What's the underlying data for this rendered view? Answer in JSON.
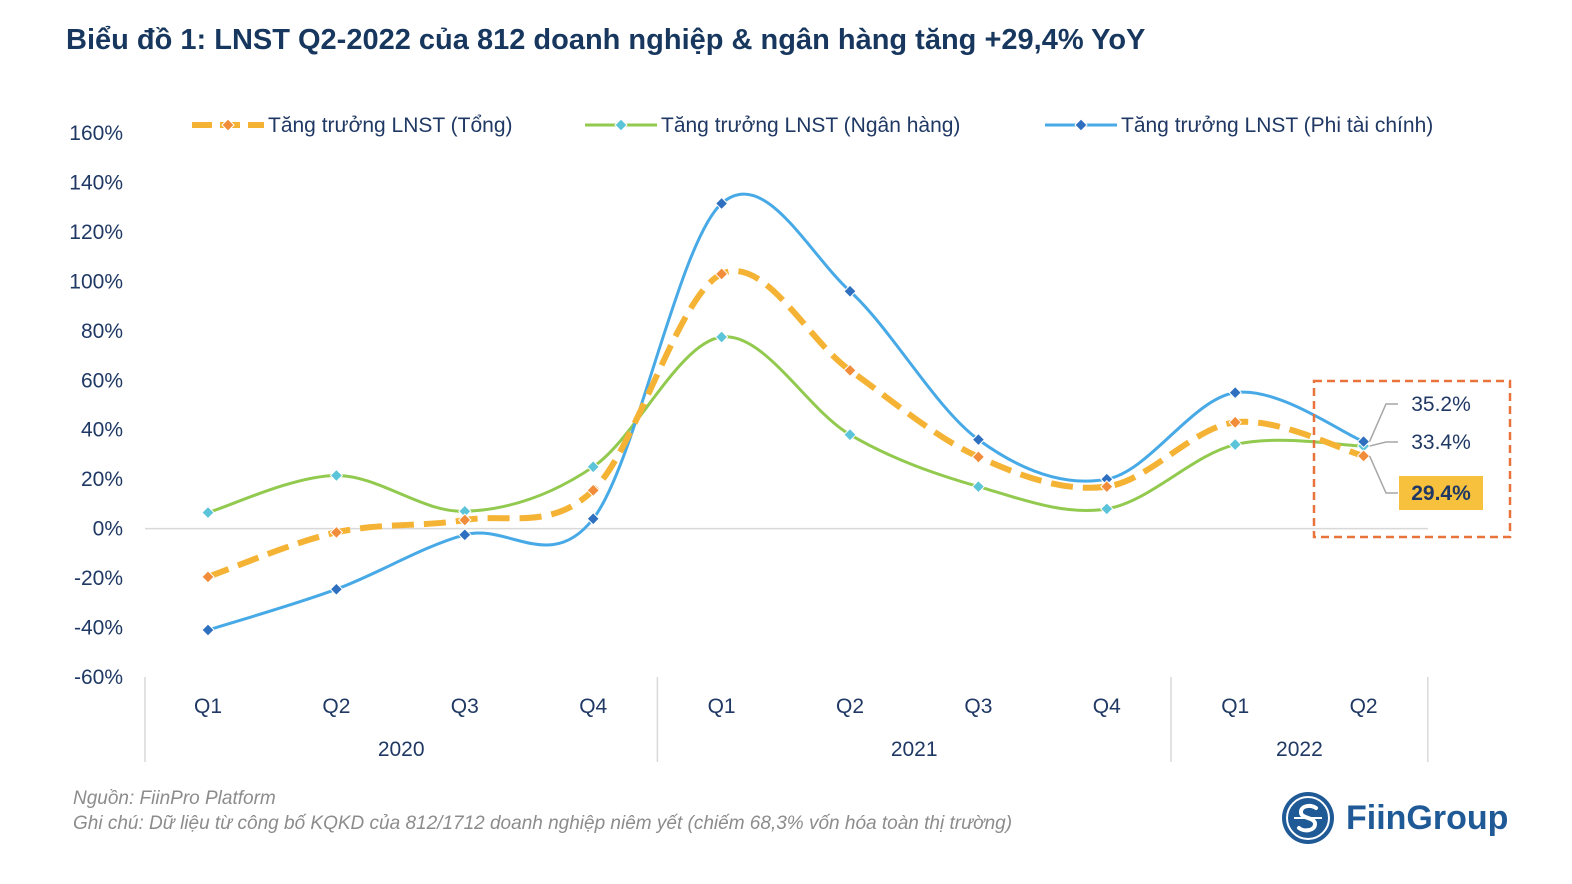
{
  "header": {
    "title": "Biểu đồ 1: LNST Q2-2022 của 812 doanh nghiệp & ngân hàng tăng +29,4% YoY"
  },
  "chart_data": {
    "type": "line",
    "categories": [
      "Q1",
      "Q2",
      "Q3",
      "Q4",
      "Q1",
      "Q2",
      "Q3",
      "Q4",
      "Q1",
      "Q2"
    ],
    "groups": [
      {
        "label": "2020",
        "count": 4
      },
      {
        "label": "2021",
        "count": 4
      },
      {
        "label": "2022",
        "count": 2
      }
    ],
    "ylim": [
      -60,
      160
    ],
    "yticks": [
      -60,
      -40,
      -20,
      0,
      20,
      40,
      60,
      80,
      100,
      120,
      140,
      160
    ],
    "ytick_labels": [
      "-60%",
      "-40%",
      "-20%",
      "0%",
      "20%",
      "40%",
      "60%",
      "80%",
      "100%",
      "120%",
      "140%",
      "160%"
    ],
    "grid": false,
    "legend_position": "top",
    "series": [
      {
        "name": "Tăng trưởng LNST (Tổng)",
        "color": "#f5b335",
        "marker_color": "#f08c3a",
        "dashed": true,
        "values": [
          -19.5,
          -1.5,
          3.5,
          15.5,
          103.0,
          64.0,
          29.0,
          17.0,
          43.0,
          29.4
        ]
      },
      {
        "name": "Tăng trưởng LNST (Ngân hàng)",
        "color": "#92c94f",
        "marker_color": "#5cc4d8",
        "dashed": false,
        "values": [
          6.5,
          21.5,
          7.0,
          25.0,
          77.5,
          38.0,
          17.0,
          8.0,
          34.0,
          33.4
        ]
      },
      {
        "name": "Tăng trưởng LNST (Phi tài chính)",
        "color": "#47a9e6",
        "marker_color": "#2e6fbf",
        "dashed": false,
        "values": [
          -41.0,
          -24.5,
          -2.5,
          4.0,
          131.5,
          96.0,
          36.0,
          20.0,
          55.0,
          35.2
        ]
      }
    ],
    "annotations": [
      {
        "text": "35.2%",
        "highlight": false
      },
      {
        "text": "33.4%",
        "highlight": false
      },
      {
        "text": "29.4%",
        "highlight": true,
        "highlight_color": "#f7c13d"
      }
    ],
    "annotation_box_color": "#e8743b"
  },
  "footer": {
    "source": "Nguồn: FiinPro Platform",
    "note": "Ghi chú: Dữ liệu từ công bố KQKD của 812/1712 doanh nghiệp niêm yết (chiếm 68,3% vốn hóa toàn thị trường)"
  },
  "logo": {
    "text": "FiinGroup",
    "trademark": "®"
  }
}
